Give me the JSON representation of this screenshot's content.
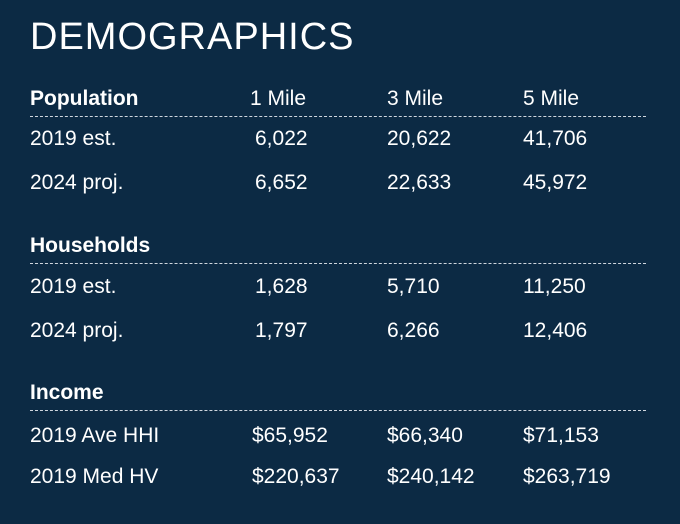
{
  "title": "DEMOGRAPHICS",
  "columns": [
    "1 Mile",
    "3 Mile",
    "5 Mile"
  ],
  "sections": [
    {
      "label": "Population",
      "rows": [
        {
          "label": "2019 est.",
          "values": [
            "6,022",
            "20,622",
            "41,706"
          ]
        },
        {
          "label": "2024 proj.",
          "values": [
            "6,652",
            "22,633",
            "45,972"
          ]
        }
      ]
    },
    {
      "label": "Households",
      "rows": [
        {
          "label": "2019 est.",
          "values": [
            "1,628",
            "5,710",
            "11,250"
          ]
        },
        {
          "label": "2024 proj.",
          "values": [
            "1,797",
            "6,266",
            "12,406"
          ]
        }
      ]
    },
    {
      "label": "Income",
      "rows": [
        {
          "label": "2019 Ave HHI",
          "values": [
            "$65,952",
            "$66,340",
            "$71,153"
          ]
        },
        {
          "label": "2019 Med HV",
          "values": [
            "$220,637",
            "$240,142",
            "$263,719"
          ]
        }
      ]
    }
  ]
}
